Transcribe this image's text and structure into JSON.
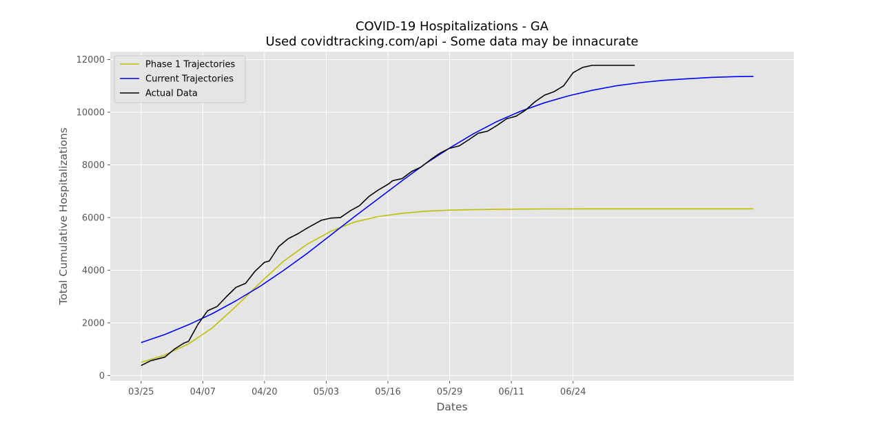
{
  "chart_data": {
    "type": "line",
    "title": "COVID-19 Hospitalizations - GA",
    "subtitle": "Used covidtracking.com/api - Some data may be innacurate",
    "xlabel": "Dates",
    "ylabel": "Total Cumulative Hospitalizations",
    "xticks": [
      "03/25",
      "04/07",
      "04/20",
      "05/03",
      "05/16",
      "05/29",
      "06/11",
      "06/24"
    ],
    "xlim_days": [
      -6.5,
      137.5
    ],
    "ylim": [
      -200,
      12300
    ],
    "yticks": [
      0,
      2000,
      4000,
      6000,
      8000,
      10000,
      12000
    ],
    "grid": true,
    "legend_position": "top-left",
    "series": [
      {
        "name": "Phase 1 Trajectories",
        "color": "#bfbf00",
        "x_start": "03/25",
        "x": [
          0,
          5,
          10,
          15,
          20,
          25,
          30,
          35,
          40,
          45,
          50,
          55,
          60,
          65,
          70,
          75,
          80,
          85,
          90,
          95,
          100,
          105,
          110,
          115,
          120,
          125,
          129
        ],
        "values": [
          500,
          780,
          1200,
          1810,
          2630,
          3510,
          4340,
          4990,
          5480,
          5830,
          6040,
          6160,
          6240,
          6280,
          6300,
          6310,
          6320,
          6325,
          6328,
          6330,
          6330,
          6330,
          6330,
          6330,
          6330,
          6330,
          6330
        ]
      },
      {
        "name": "Current Trajectories",
        "color": "#0000ff",
        "x_start": "03/25",
        "x": [
          0,
          5,
          10,
          15,
          20,
          25,
          30,
          35,
          40,
          45,
          50,
          55,
          60,
          65,
          70,
          75,
          80,
          85,
          90,
          95,
          100,
          105,
          110,
          115,
          120,
          125,
          129
        ],
        "values": [
          1250,
          1560,
          1930,
          2350,
          2840,
          3380,
          3990,
          4640,
          5340,
          6040,
          6720,
          7400,
          8060,
          8640,
          9180,
          9650,
          10040,
          10360,
          10620,
          10830,
          11000,
          11120,
          11210,
          11270,
          11320,
          11350,
          11360
        ]
      },
      {
        "name": "Actual Data",
        "color": "#000000",
        "x_start": "03/25",
        "x": [
          0,
          2,
          5,
          7,
          9,
          10,
          12,
          14,
          16,
          18,
          20,
          22,
          24,
          26,
          27,
          29,
          31,
          33,
          35,
          37,
          38,
          40,
          42,
          44,
          46,
          48,
          50,
          52,
          53,
          55,
          57,
          59,
          61,
          63,
          65,
          67,
          69,
          71,
          73,
          75,
          77,
          79,
          81,
          83,
          85,
          87,
          89,
          91,
          93,
          95,
          97,
          99,
          101,
          103,
          104
        ],
        "values": [
          380,
          560,
          700,
          1000,
          1230,
          1300,
          1950,
          2460,
          2620,
          3000,
          3350,
          3500,
          3960,
          4300,
          4350,
          4900,
          5200,
          5380,
          5600,
          5800,
          5900,
          5980,
          6000,
          6250,
          6450,
          6800,
          7050,
          7260,
          7400,
          7480,
          7750,
          7920,
          8200,
          8450,
          8630,
          8720,
          8950,
          9200,
          9280,
          9500,
          9750,
          9850,
          10080,
          10400,
          10650,
          10780,
          11000,
          11500,
          11700,
          11780,
          11780,
          11780,
          11780,
          11780,
          11780
        ]
      }
    ]
  }
}
